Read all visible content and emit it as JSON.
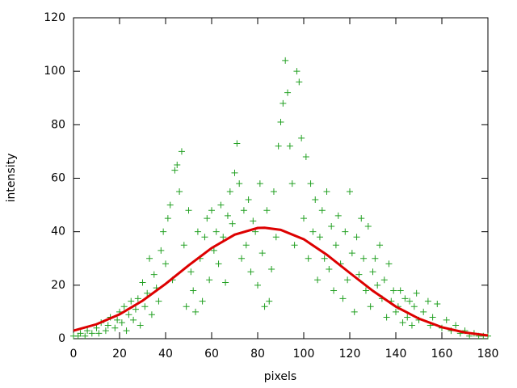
{
  "chart_data": {
    "type": "scatter",
    "xlabel": "pixels",
    "ylabel": "intensity",
    "xlim": [
      0,
      180
    ],
    "xticks": [
      0,
      20,
      40,
      60,
      80,
      100,
      120,
      140,
      160,
      180
    ],
    "ylim": [
      0,
      120
    ],
    "yticks": [
      0,
      20,
      40,
      60,
      80,
      100,
      120
    ],
    "series": [
      {
        "marker": "+",
        "color": "#22a022",
        "x": [
          0,
          2,
          3,
          5,
          6,
          8,
          10,
          11,
          12,
          14,
          15,
          16,
          18,
          19,
          20,
          21,
          22,
          23,
          24,
          25,
          26,
          27,
          28,
          29,
          30,
          31,
          32,
          33,
          34,
          35,
          36,
          37,
          38,
          39,
          40,
          41,
          42,
          43,
          44,
          45,
          46,
          47,
          48,
          49,
          50,
          51,
          52,
          53,
          54,
          55,
          56,
          57,
          58,
          59,
          60,
          61,
          62,
          63,
          64,
          65,
          66,
          67,
          68,
          69,
          70,
          71,
          72,
          73,
          74,
          75,
          76,
          77,
          78,
          79,
          80,
          81,
          82,
          83,
          84,
          85,
          86,
          87,
          88,
          89,
          90,
          91,
          92,
          93,
          94,
          95,
          96,
          97,
          98,
          99,
          100,
          101,
          102,
          103,
          104,
          105,
          106,
          107,
          108,
          109,
          110,
          111,
          112,
          113,
          114,
          115,
          116,
          117,
          118,
          119,
          120,
          121,
          122,
          123,
          124,
          125,
          126,
          127,
          128,
          129,
          130,
          131,
          132,
          133,
          134,
          135,
          136,
          137,
          138,
          139,
          140,
          141,
          142,
          143,
          144,
          145,
          146,
          147,
          148,
          149,
          150,
          152,
          154,
          155,
          156,
          158,
          160,
          162,
          164,
          166,
          168,
          170,
          172,
          174,
          176,
          178,
          180
        ],
        "values": [
          1,
          1,
          2,
          1,
          3,
          2,
          4,
          2,
          6,
          3,
          5,
          8,
          4,
          7,
          10,
          6,
          12,
          3,
          9,
          14,
          7,
          11,
          15,
          5,
          21,
          12,
          17,
          30,
          9,
          24,
          19,
          14,
          33,
          40,
          28,
          45,
          50,
          22,
          63,
          65,
          55,
          70,
          35,
          12,
          48,
          25,
          18,
          10,
          40,
          30,
          14,
          38,
          45,
          22,
          48,
          33,
          40,
          28,
          50,
          38,
          21,
          46,
          55,
          43,
          62,
          73,
          58,
          30,
          48,
          35,
          52,
          25,
          44,
          40,
          20,
          58,
          32,
          12,
          48,
          14,
          26,
          55,
          38,
          72,
          81,
          88,
          104,
          92,
          72,
          58,
          35,
          100,
          96,
          75,
          45,
          68,
          30,
          58,
          40,
          52,
          22,
          38,
          48,
          30,
          55,
          26,
          42,
          18,
          35,
          46,
          28,
          15,
          40,
          22,
          55,
          32,
          10,
          38,
          24,
          45,
          30,
          18,
          42,
          12,
          25,
          30,
          20,
          35,
          15,
          22,
          8,
          28,
          14,
          18,
          10,
          12,
          18,
          6,
          15,
          8,
          14,
          5,
          12,
          17,
          7,
          10,
          14,
          5,
          8,
          13,
          4,
          7,
          3,
          5,
          2,
          3,
          1,
          2,
          1,
          1,
          1
        ]
      },
      {
        "marker": "line",
        "color": "#dd0000",
        "x": [
          0,
          10,
          20,
          30,
          40,
          50,
          60,
          70,
          80,
          83,
          90,
          100,
          110,
          120,
          130,
          140,
          150,
          160,
          170,
          180
        ],
        "values": [
          3.0,
          5.4,
          9.1,
          14.2,
          20.5,
          27.4,
          33.9,
          38.9,
          41.4,
          41.5,
          40.7,
          37.2,
          31.4,
          24.6,
          17.9,
          12.0,
          7.5,
          4.3,
          2.3,
          1.2
        ]
      }
    ]
  }
}
